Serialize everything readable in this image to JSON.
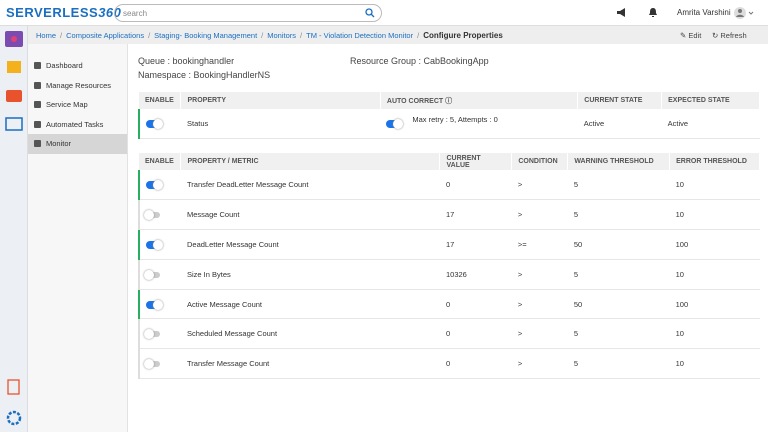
{
  "header": {
    "logo_text": "SERVERLESS",
    "logo_number": "360",
    "search_placeholder": "search",
    "user": "Amrita Varshini"
  },
  "breadcrumb": [
    "Home",
    "Composite Applications",
    "Staging- Booking Management",
    "Monitors",
    "TM - Violation Detection Monitor",
    "Configure Properties"
  ],
  "actions": [
    "Edit",
    "Refresh"
  ],
  "sidebar": [
    "Dashboard",
    "Manage Resources",
    "Service Map",
    "Automated Tasks",
    "Monitor"
  ],
  "sidebar_active": 4,
  "info": {
    "queue": "Queue : bookinghandler",
    "namespace": "Namespace : BookingHandlerNS",
    "resource_group": "Resource Group : CabBookingApp"
  },
  "status_table": {
    "headers": [
      "ENABLE",
      "PROPERTY",
      "AUTO CORRECT",
      "CURRENT STATE",
      "EXPECTED STATE"
    ],
    "rows": [
      {
        "enabled": true,
        "property": "Status",
        "auto_correct": true,
        "auto_correct_text": "Max retry : 5, Attempts : 0",
        "current_state": "Active",
        "expected_state": "Active"
      }
    ]
  },
  "metrics_table": {
    "headers": [
      "ENABLE",
      "PROPERTY / METRIC",
      "CURRENT VALUE",
      "CONDITION",
      "WARNING THRESHOLD",
      "ERROR THRESHOLD"
    ],
    "rows": [
      {
        "enabled": true,
        "cells": [
          "Transfer DeadLetter Message Count",
          "0",
          ">",
          "5",
          "10"
        ]
      },
      {
        "enabled": false,
        "cells": [
          "Message Count",
          "17",
          ">",
          "5",
          "10"
        ]
      },
      {
        "enabled": true,
        "cells": [
          "DeadLetter Message Count",
          "17",
          ">=",
          "50",
          "100"
        ]
      },
      {
        "enabled": false,
        "cells": [
          "Size In Bytes",
          "10326",
          ">",
          "5",
          "10"
        ]
      },
      {
        "enabled": true,
        "cells": [
          "Active Message Count",
          "0",
          ">",
          "50",
          "100"
        ]
      },
      {
        "enabled": false,
        "cells": [
          "Scheduled Message Count",
          "0",
          ">",
          "5",
          "10"
        ]
      },
      {
        "enabled": false,
        "cells": [
          "Transfer Message Count",
          "0",
          ">",
          "5",
          "10"
        ]
      }
    ]
  }
}
